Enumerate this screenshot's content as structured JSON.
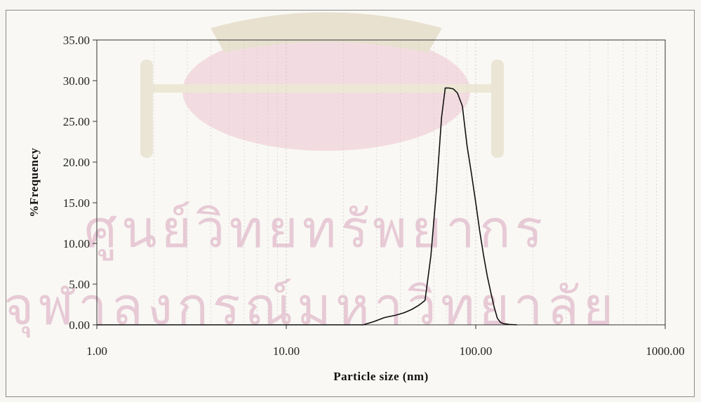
{
  "chart_data": {
    "type": "line",
    "title": "",
    "xlabel": "Particle size (nm)",
    "ylabel": "%Frequency",
    "x_scale": "log",
    "xlim": [
      1,
      1000
    ],
    "ylim": [
      0,
      35
    ],
    "x_ticks": [
      "1.00",
      "10.00",
      "100.00",
      "1000.00"
    ],
    "y_ticks": [
      "0.00",
      "5.00",
      "10.00",
      "15.00",
      "20.00",
      "25.00",
      "30.00",
      "35.00"
    ],
    "grid": "minor vertical (log) gridlines, faint",
    "legend": "none",
    "series": [
      {
        "color": "#111111",
        "x": [
          1,
          25.5,
          29,
          33,
          38,
          42,
          46,
          50,
          54,
          58,
          62,
          66,
          69,
          72,
          76,
          80,
          85,
          90,
          95,
          100,
          105,
          110,
          115,
          120,
          125,
          130,
          135,
          140,
          145,
          150,
          165
        ],
        "y": [
          0,
          0,
          0.4,
          0.9,
          1.2,
          1.5,
          1.9,
          2.4,
          3.0,
          8.5,
          16.5,
          25.5,
          29.1,
          29.1,
          29.0,
          28.5,
          26.9,
          22.0,
          18.5,
          15.0,
          11.5,
          8.5,
          6.0,
          4.0,
          2.2,
          0.8,
          0.3,
          0.15,
          0.1,
          0.05,
          0.0
        ]
      }
    ]
  },
  "watermark": {
    "line1": "ศูนย์วิทยทรัพยากร",
    "line2": "จุฬาลงกรณ์มหาวิทยาลัย",
    "color": "#d9a6bf"
  }
}
